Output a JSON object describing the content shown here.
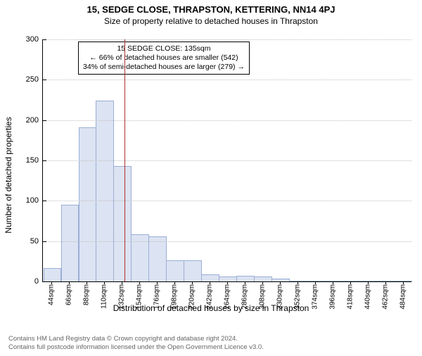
{
  "titles": {
    "address": "15, SEDGE CLOSE, THRAPSTON, KETTERING, NN14 4PJ",
    "subtitle": "Size of property relative to detached houses in Thrapston"
  },
  "chart": {
    "type": "histogram",
    "background_color": "#ffffff",
    "bar_fill": "#dce3f2",
    "bar_stroke": "#9aaed6",
    "grid_color": "#c0c0c0",
    "axis_color": "#000000",
    "ref_line_color": "#b03030",
    "ylabel": "Number of detached properties",
    "xlabel": "Distribution of detached houses by size in Thrapston",
    "ylim_max": 300,
    "ytick_step": 50,
    "yticks": [
      0,
      50,
      100,
      150,
      200,
      250,
      300
    ],
    "ref_value": 135,
    "x_start": 44,
    "x_step": 22,
    "bar_width_ratio": 0.95,
    "categories": [
      "44sqm",
      "66sqm",
      "88sqm",
      "110sqm",
      "132sqm",
      "154sqm",
      "176sqm",
      "198sqm",
      "220sqm",
      "242sqm",
      "264sqm",
      "286sqm",
      "308sqm",
      "330sqm",
      "352sqm",
      "374sqm",
      "396sqm",
      "418sqm",
      "440sqm",
      "462sqm",
      "484sqm"
    ],
    "values": [
      16,
      94,
      190,
      223,
      142,
      58,
      55,
      25,
      25,
      8,
      5,
      6,
      5,
      3,
      0,
      0,
      0,
      0,
      0,
      0,
      0
    ]
  },
  "callout": {
    "line1": "15 SEDGE CLOSE: 135sqm",
    "line2": "← 66% of detached houses are smaller (542)",
    "line3": "34% of semi-detached houses are larger (279) →"
  },
  "footer": {
    "line1": "Contains HM Land Registry data © Crown copyright and database right 2024.",
    "line2": "Contains full postcode information licensed under the Open Government Licence v3.0."
  }
}
